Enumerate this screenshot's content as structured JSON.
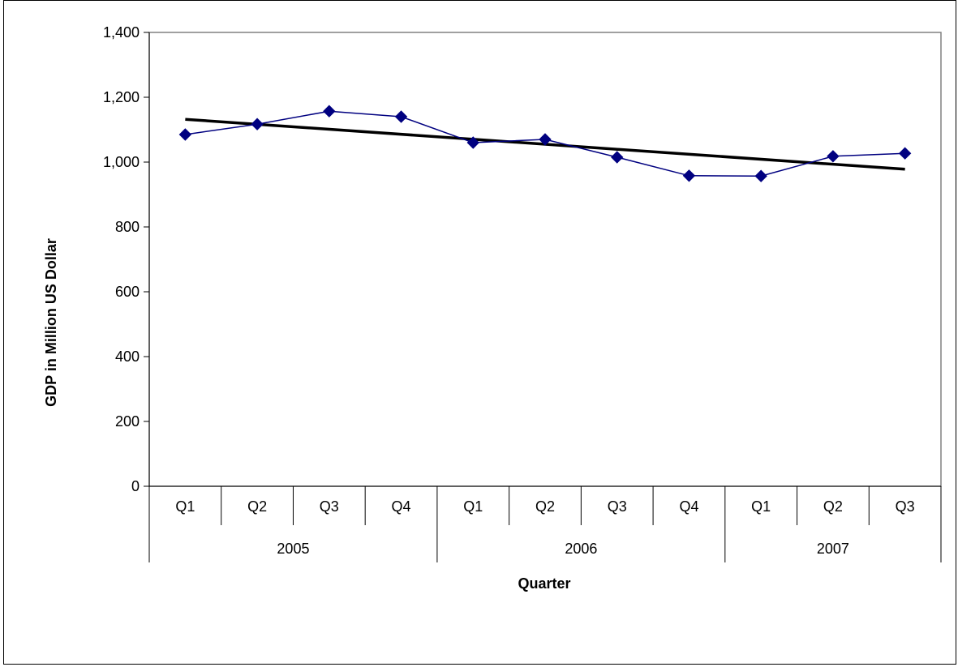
{
  "chart_data": {
    "type": "line",
    "title": "",
    "xlabel": "Quarter",
    "ylabel": "GDP in Million US Dollar",
    "ylim": [
      0,
      1400
    ],
    "yticks": [
      0,
      200,
      400,
      600,
      800,
      1000,
      1200,
      1400
    ],
    "ytick_labels": [
      "0",
      "200",
      "400",
      "600",
      "800",
      "1,000",
      "1,200",
      "1,400"
    ],
    "categories": [
      "Q1",
      "Q2",
      "Q3",
      "Q4",
      "Q1",
      "Q2",
      "Q3",
      "Q4",
      "Q1",
      "Q2",
      "Q3"
    ],
    "groups": [
      {
        "label": "2005",
        "count": 4
      },
      {
        "label": "2006",
        "count": 4
      },
      {
        "label": "2007",
        "count": 3
      }
    ],
    "series": [
      {
        "values": [
          1085,
          1117,
          1157,
          1140,
          1060,
          1070,
          1015,
          958,
          957,
          1018,
          1027
        ],
        "color": "#000080",
        "marker": "diamond"
      }
    ],
    "trendline": {
      "type": "linear",
      "start": 1132,
      "end": 978,
      "color": "#000000"
    },
    "grid": false,
    "legend": "none"
  }
}
